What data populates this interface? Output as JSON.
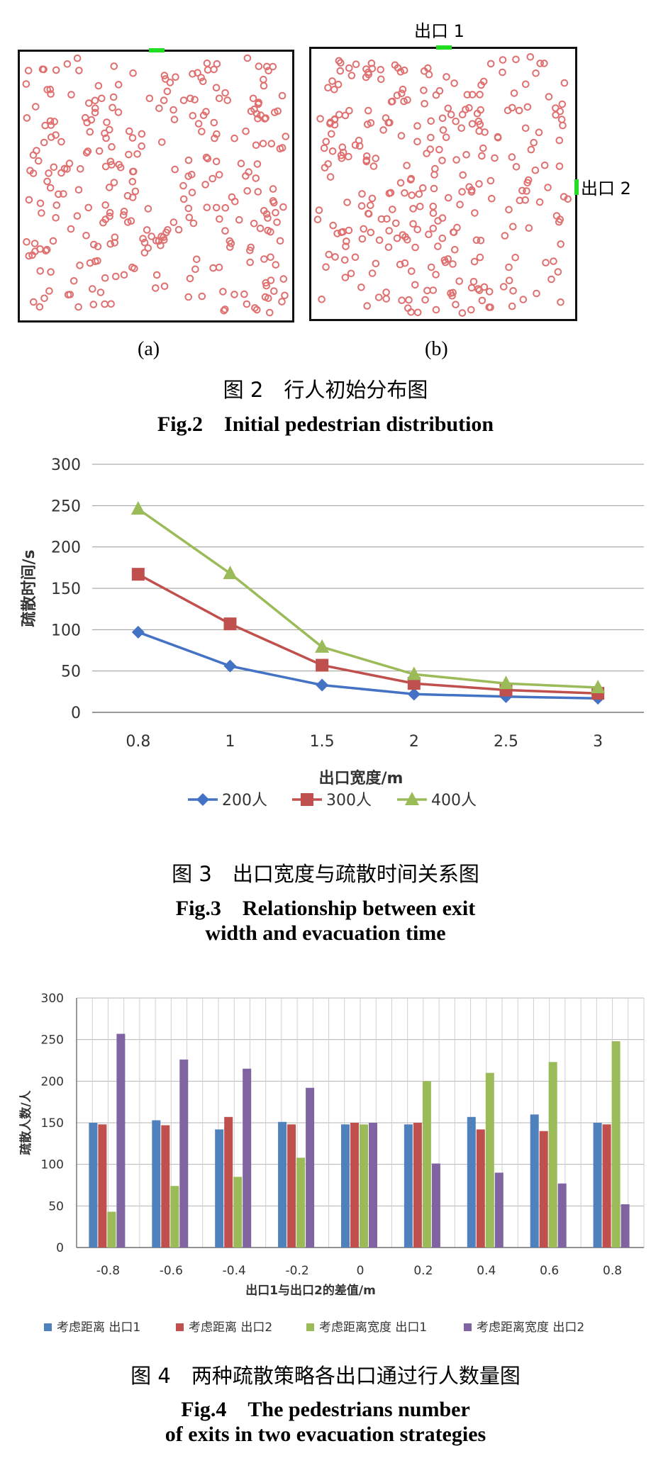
{
  "fig2": {
    "exit1_label": "出口 1",
    "exit2_label": "出口 2",
    "sub_a": "(a)",
    "sub_b": "(b)",
    "caption_cn": "图 2　行人初始分布图",
    "caption_en": "Fig.2　Initial pedestrian distribution",
    "pedestrian_color": "#e07070",
    "exit_color": "#22dd22"
  },
  "fig3": {
    "caption_cn": "图 3　出口宽度与疏散时间关系图",
    "caption_en_1": "Fig.3　Relationship between exit",
    "caption_en_2": "width and evacuation time"
  },
  "fig4": {
    "caption_cn": "图 4　两种疏散策略各出口通过行人数量图",
    "caption_en_1": "Fig.4　The pedestrians number",
    "caption_en_2": "of exits in two evacuation strategies"
  },
  "chart_data": [
    {
      "type": "line",
      "categories": [
        "0.8",
        "1",
        "1.5",
        "2",
        "2.5",
        "3"
      ],
      "xlabel": "出口宽度/m",
      "ylabel": "疏散时间/s",
      "ylim": [
        0,
        300
      ],
      "yticks": [
        0,
        50,
        100,
        150,
        200,
        250,
        300
      ],
      "grid": true,
      "legend": "bottom",
      "series": [
        {
          "name": "200人",
          "values": [
            97,
            56,
            33,
            22,
            19,
            17
          ],
          "color": "#4472c4",
          "marker": "diamond"
        },
        {
          "name": "300人",
          "values": [
            167,
            107,
            57,
            35,
            27,
            23
          ],
          "color": "#c0504d",
          "marker": "square"
        },
        {
          "name": "400人",
          "values": [
            246,
            168,
            79,
            46,
            35,
            30
          ],
          "color": "#9bbb59",
          "marker": "triangle"
        }
      ]
    },
    {
      "type": "bar",
      "categories": [
        "-0.8",
        "-0.6",
        "-0.4",
        "-0.2",
        "0",
        "0.2",
        "0.4",
        "0.6",
        "0.8"
      ],
      "xlabel": "出口1与出口2的差值/m",
      "ylabel": "疏散人数/人",
      "ylim": [
        0,
        300
      ],
      "yticks": [
        0,
        50,
        100,
        150,
        200,
        250,
        300
      ],
      "grid": true,
      "legend": "bottom",
      "series": [
        {
          "name": "考虑距离 出口1",
          "values": [
            150,
            153,
            142,
            151,
            148,
            148,
            157,
            160,
            150
          ],
          "color": "#4f81bd"
        },
        {
          "name": "考虑距离 出口2",
          "values": [
            148,
            147,
            157,
            148,
            150,
            150,
            142,
            140,
            148
          ],
          "color": "#c0504d"
        },
        {
          "name": "考虑距离宽度 出口1",
          "values": [
            43,
            74,
            85,
            108,
            148,
            200,
            210,
            223,
            248
          ],
          "color": "#9bbb59"
        },
        {
          "name": "考虑距离宽度 出口2",
          "values": [
            257,
            226,
            215,
            192,
            150,
            101,
            90,
            77,
            52
          ],
          "color": "#8064a2"
        }
      ]
    }
  ]
}
